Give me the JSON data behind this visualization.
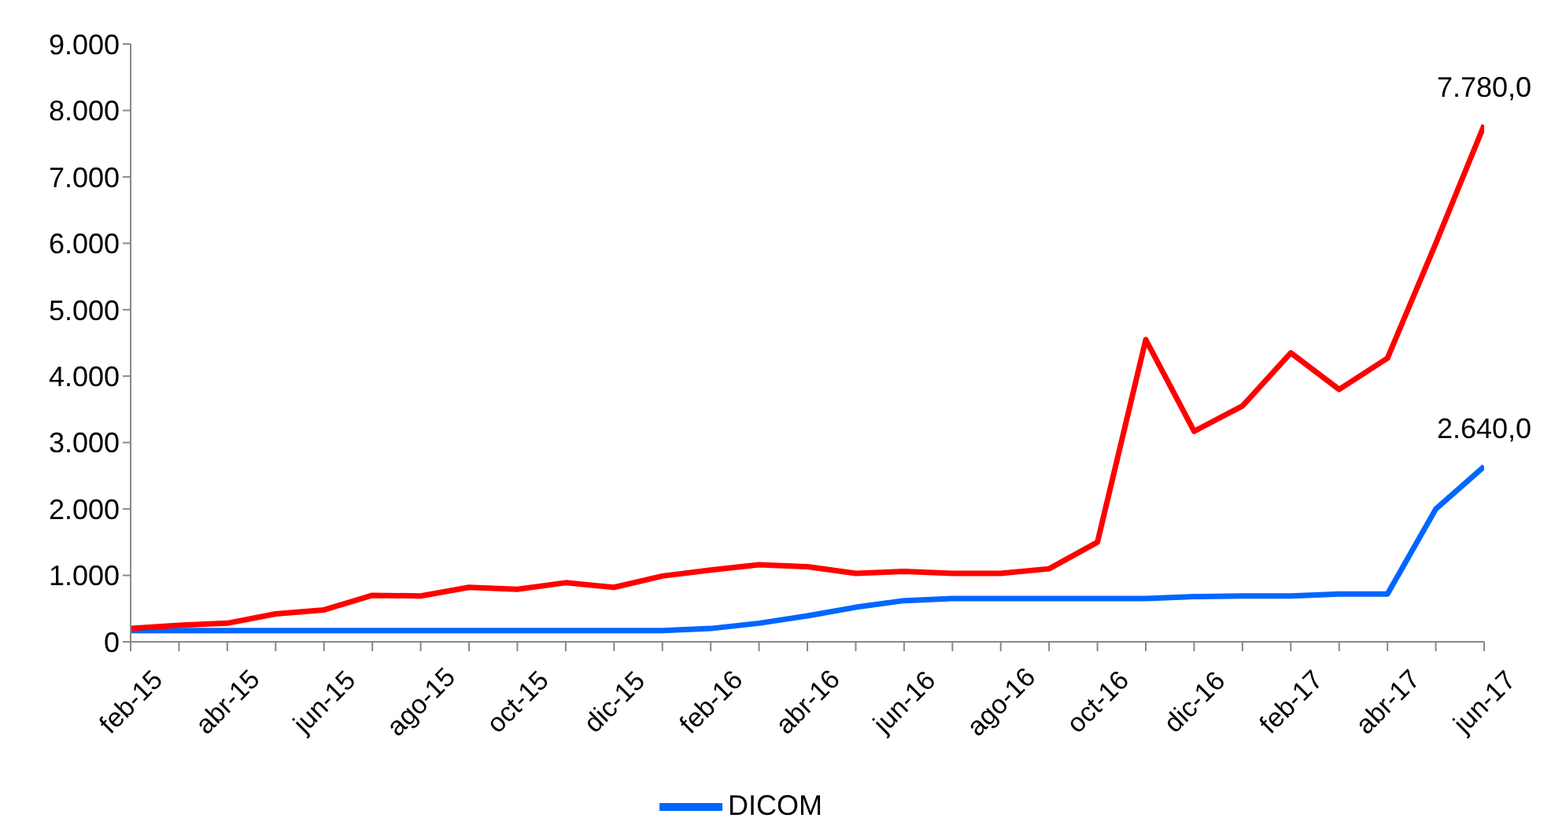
{
  "chart_data": {
    "type": "line",
    "categories": [
      "feb-15",
      null,
      "abr-15",
      null,
      "jun-15",
      null,
      "ago-15",
      null,
      "oct-15",
      null,
      "dic-15",
      null,
      "feb-16",
      null,
      "abr-16",
      null,
      "jun-16",
      null,
      "ago-16",
      null,
      "oct-16",
      null,
      "dic-16",
      null,
      "feb-17",
      null,
      "abr-17",
      null,
      "jun-17"
    ],
    "series": [
      {
        "name": "DICOM",
        "color": "#0066ff",
        "values": [
          170,
          170,
          170,
          170,
          170,
          170,
          170,
          170,
          170,
          170,
          170,
          170,
          200,
          280,
          390,
          520,
          620,
          650,
          650,
          650,
          650,
          650,
          680,
          690,
          690,
          720,
          720,
          2000,
          2640
        ],
        "value_labels": [
          null,
          null,
          null,
          null,
          null,
          null,
          null,
          null,
          null,
          null,
          null,
          null,
          null,
          null,
          null,
          null,
          null,
          null,
          null,
          null,
          null,
          null,
          null,
          null,
          null,
          null,
          null,
          null,
          "2.640,0"
        ]
      },
      {
        "color": "#ff0000",
        "values": [
          200,
          250,
          280,
          420,
          480,
          700,
          690,
          820,
          790,
          890,
          820,
          990,
          1080,
          1160,
          1130,
          1030,
          1060,
          1030,
          1030,
          1100,
          1500,
          4550,
          3170,
          3550,
          4350,
          3800,
          4270,
          6000,
          7780
        ],
        "value_labels": [
          null,
          null,
          null,
          null,
          null,
          null,
          null,
          null,
          null,
          null,
          null,
          null,
          null,
          null,
          null,
          null,
          null,
          null,
          null,
          null,
          null,
          null,
          null,
          null,
          null,
          null,
          null,
          null,
          "7.780,0"
        ]
      }
    ],
    "ylim": [
      0,
      9000
    ],
    "yticks": [
      {
        "value": 0,
        "label": "0"
      },
      {
        "value": 1000,
        "label": "1.000"
      },
      {
        "value": 2000,
        "label": "2.000"
      },
      {
        "value": 3000,
        "label": "3.000"
      },
      {
        "value": 4000,
        "label": "4.000"
      },
      {
        "value": 5000,
        "label": "5.000"
      },
      {
        "value": 6000,
        "label": "6.000"
      },
      {
        "value": 7000,
        "label": "7.000"
      },
      {
        "value": 8000,
        "label": "8.000"
      },
      {
        "value": 9000,
        "label": "9.000"
      }
    ],
    "grid": false,
    "legend": "bottom",
    "marker": "none",
    "line_style": "solid"
  }
}
